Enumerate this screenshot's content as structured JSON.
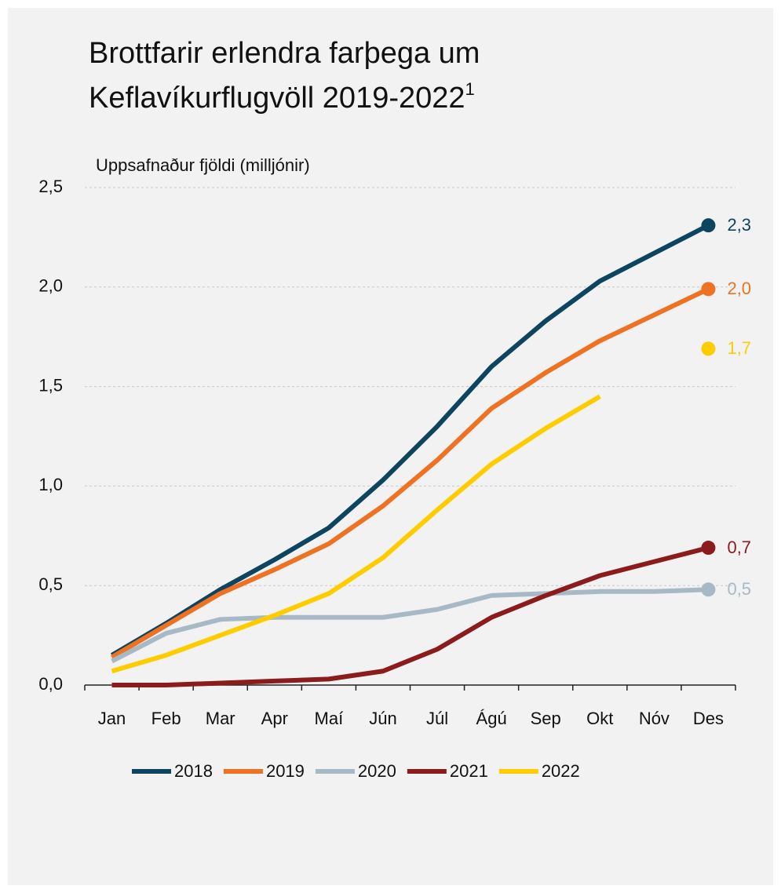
{
  "chart_data": {
    "type": "line",
    "title": "Brottfarir erlendra farþega um Keflavíkurflugvöll 2019-2022",
    "title_superscript": "1",
    "y_label": "Uppsafnaður fjöldi (milljónir)",
    "categories": [
      "Jan",
      "Feb",
      "Mar",
      "Apr",
      "Maí",
      "Jún",
      "Júl",
      "Ágú",
      "Sep",
      "Okt",
      "Nóv",
      "Des"
    ],
    "ylim": [
      0,
      2.5
    ],
    "yticks": [
      {
        "value": 0,
        "label": "0,0"
      },
      {
        "value": 0.5,
        "label": "0,5"
      },
      {
        "value": 1,
        "label": "1,0"
      },
      {
        "value": 1.5,
        "label": "1,5"
      },
      {
        "value": 2,
        "label": "2,0"
      },
      {
        "value": 2.5,
        "label": "2,5"
      }
    ],
    "grid": true,
    "legend": "bottom",
    "series": [
      {
        "name": "2018",
        "color": "#0d4560",
        "values": [
          0.15,
          0.31,
          0.48,
          0.63,
          0.79,
          1.03,
          1.3,
          1.6,
          1.83,
          2.03,
          2.17,
          2.31
        ],
        "end_label": "2,3"
      },
      {
        "name": "2019",
        "color": "#ee7222",
        "values": [
          0.14,
          0.3,
          0.46,
          0.58,
          0.71,
          0.9,
          1.13,
          1.39,
          1.57,
          1.73,
          1.86,
          1.99
        ],
        "end_label": "2,0"
      },
      {
        "name": "2020",
        "color": "#a7b9c5",
        "values": [
          0.12,
          0.26,
          0.33,
          0.34,
          0.34,
          0.34,
          0.38,
          0.45,
          0.46,
          0.47,
          0.47,
          0.48
        ],
        "end_label": "0,5"
      },
      {
        "name": "2021",
        "color": "#8c1c1c",
        "values": [
          0.0,
          0.0,
          0.01,
          0.02,
          0.03,
          0.07,
          0.18,
          0.34,
          0.45,
          0.55,
          0.62,
          0.69
        ],
        "end_label": "0,7"
      },
      {
        "name": "2022",
        "color": "#ffcc00",
        "values": [
          0.07,
          0.15,
          0.25,
          0.35,
          0.46,
          0.64,
          0.88,
          1.11,
          1.29,
          1.45,
          null,
          1.69
        ],
        "end_label": "1,7"
      }
    ]
  }
}
